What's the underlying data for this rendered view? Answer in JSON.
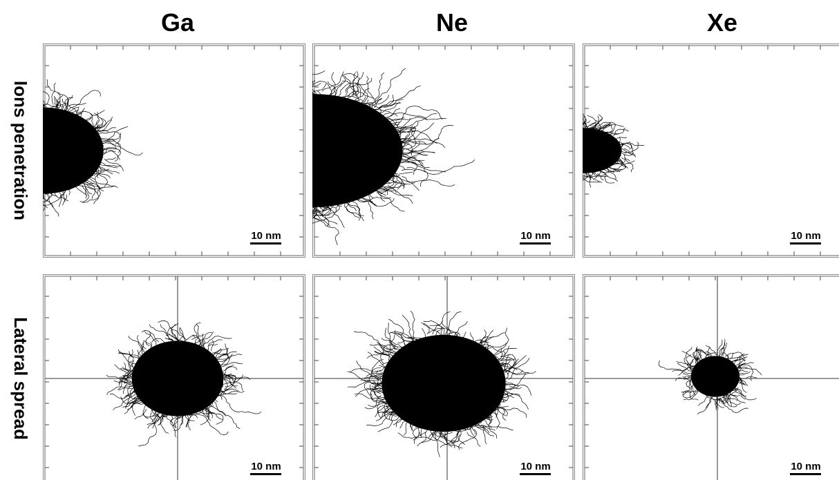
{
  "columns": [
    "Ga",
    "Ne",
    "Xe"
  ],
  "rows": [
    "Ions penetration",
    "Lateral spread"
  ],
  "scale_bars": [
    [
      "10 nm",
      "10 nm",
      "10 nm"
    ],
    [
      "10 nm",
      "10 nm",
      "10 nm"
    ]
  ]
}
